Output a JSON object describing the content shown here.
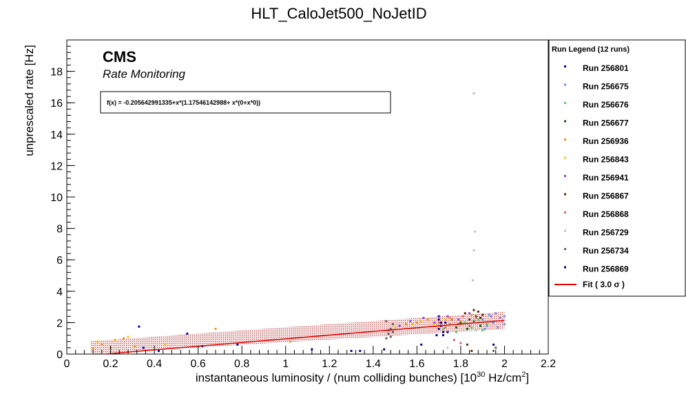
{
  "chart_data": {
    "type": "scatter",
    "title": "HLT_CaloJet500_NoJetID",
    "xlabel": "instantaneous luminosity / (num colliding bunches) [10",
    "xlabel_sup": "30",
    "xlabel_tail": " Hz/cm",
    "xlabel_sup2": "2",
    "xlabel_end": "]",
    "ylabel": "unprescaled rate [Hz]",
    "xlim": [
      0,
      2.2
    ],
    "ylim": [
      0,
      20
    ],
    "xticks": [
      "0",
      "0.2",
      "0.4",
      "0.6",
      "0.8",
      "1",
      "1.2",
      "1.4",
      "1.6",
      "1.8",
      "2",
      "2.2"
    ],
    "yticks": [
      "0",
      "2",
      "4",
      "6",
      "8",
      "10",
      "12",
      "14",
      "16",
      "18"
    ],
    "cms_label": "CMS",
    "subtitle": "Rate Monitoring",
    "fit_formula": "f(x) = -0.205642991335+x*(1.17546142988+ x*(0+x*0))",
    "fit": {
      "intercept": -0.205642991335,
      "slope": 1.17546142988,
      "x_range": [
        0.11,
        2.0
      ],
      "band_sigma": 3.0
    },
    "legend_title": "Run Legend (12 runs)",
    "legend_position": "right",
    "fit_legend_label": "Fit ( 3.0  σ )",
    "fit_color": "#e00000",
    "series": [
      {
        "name": "Run 256801",
        "color": "#0000a0",
        "points": [
          [
            0.33,
            1.75
          ],
          [
            0.35,
            0.4
          ],
          [
            0.42,
            0.2
          ],
          [
            0.55,
            1.3
          ],
          [
            0.62,
            0.5
          ],
          [
            0.78,
            0.6
          ],
          [
            1.12,
            0.3
          ],
          [
            1.34,
            0.2
          ],
          [
            1.62,
            0.6
          ],
          [
            1.7,
            2.4
          ],
          [
            1.71,
            1.8
          ],
          [
            1.72,
            1.2
          ],
          [
            1.73,
            2.0
          ],
          [
            1.74,
            1.4
          ]
        ]
      },
      {
        "name": "Run 256675",
        "color": "#6a8ef0",
        "points": [
          [
            1.9,
            2.2
          ],
          [
            1.92,
            1.8
          ],
          [
            1.94,
            2.4
          ],
          [
            1.95,
            2.0
          ],
          [
            1.96,
            2.6
          ],
          [
            1.97,
            1.7
          ],
          [
            1.98,
            2.3
          ],
          [
            1.99,
            2.1
          ],
          [
            2.0,
            1.9
          ],
          [
            1.93,
            2.5
          ],
          [
            1.91,
            1.6
          ],
          [
            2.0,
            2.4
          ]
        ]
      },
      {
        "name": "Run 256676",
        "color": "#5bc85b",
        "points": [
          [
            1.72,
            1.6
          ],
          [
            1.75,
            1.9
          ],
          [
            1.78,
            1.4
          ],
          [
            1.82,
            2.0
          ],
          [
            1.85,
            1.7
          ],
          [
            1.88,
            2.2
          ],
          [
            1.9,
            1.5
          ],
          [
            1.92,
            1.9
          ]
        ]
      },
      {
        "name": "Run 256677",
        "color": "#006000",
        "points": [
          [
            1.78,
            1.7
          ],
          [
            1.8,
            2.0
          ],
          [
            1.83,
            1.6
          ],
          [
            1.86,
            2.1
          ],
          [
            1.89,
            1.8
          ]
        ]
      },
      {
        "name": "Run 256936",
        "color": "#ff8c1a",
        "points": [
          [
            0.12,
            0.35
          ],
          [
            0.16,
            0.6
          ],
          [
            0.2,
            0.4
          ],
          [
            0.26,
            1.0
          ],
          [
            0.31,
            0.5
          ],
          [
            0.68,
            1.6
          ],
          [
            1.02,
            0.8
          ],
          [
            1.55,
            1.9
          ],
          [
            1.6,
            2.0
          ],
          [
            1.65,
            2.2
          ],
          [
            1.7,
            1.8
          ],
          [
            1.75,
            2.3
          ],
          [
            1.8,
            2.1
          ],
          [
            1.85,
            2.5
          ]
        ]
      },
      {
        "name": "Run 256843",
        "color": "#ffc000",
        "points": [
          [
            0.14,
            0.8
          ],
          [
            0.22,
            0.9
          ],
          [
            0.28,
            1.1
          ],
          [
            0.45,
            0.6
          ],
          [
            1.5,
            1.7
          ],
          [
            1.58,
            1.9
          ],
          [
            1.62,
            2.1
          ],
          [
            1.68,
            1.9
          ],
          [
            1.73,
            2.2
          ]
        ]
      },
      {
        "name": "Run 256941",
        "color": "#9040e0",
        "points": [
          [
            1.52,
            1.8
          ],
          [
            1.57,
            2.1
          ],
          [
            1.63,
            2.3
          ],
          [
            1.68,
            2.0
          ],
          [
            1.74,
            2.4
          ],
          [
            1.79,
            2.2
          ],
          [
            1.84,
            2.6
          ]
        ]
      },
      {
        "name": "Run 256867",
        "color": "#5a2a00",
        "points": [
          [
            1.82,
            2.6
          ],
          [
            1.84,
            2.2
          ],
          [
            1.86,
            2.8
          ],
          [
            1.87,
            2.4
          ],
          [
            1.88,
            2.7
          ],
          [
            1.89,
            2.3
          ],
          [
            1.9,
            2.5
          ],
          [
            1.83,
            0.6
          ],
          [
            1.85,
            0.2
          ]
        ]
      },
      {
        "name": "Run 256868",
        "color": "#e06060",
        "points": [
          [
            1.7,
            2.0
          ],
          [
            1.73,
            1.7
          ],
          [
            1.76,
            2.2
          ],
          [
            1.79,
            1.9
          ],
          [
            1.81,
            2.4
          ],
          [
            1.84,
            1.8
          ],
          [
            1.87,
            2.3
          ],
          [
            1.77,
            0.9
          ],
          [
            1.8,
            0.7
          ]
        ]
      },
      {
        "name": "Run 256729",
        "color": "#c0c0c0",
        "points": [
          [
            1.86,
            16.6
          ],
          [
            1.865,
            7.8
          ],
          [
            1.86,
            6.6
          ],
          [
            1.855,
            4.7
          ],
          [
            1.86,
            2.2
          ],
          [
            1.87,
            1.5
          ],
          [
            1.88,
            2.0
          ],
          [
            1.74,
            0.4
          ]
        ]
      },
      {
        "name": "Run 256734",
        "color": "#606060",
        "points": [
          [
            1.46,
            1.0
          ],
          [
            1.47,
            1.3
          ],
          [
            1.48,
            1.6
          ],
          [
            1.49,
            1.9
          ],
          [
            1.46,
            2.1
          ],
          [
            1.47,
            1.5
          ],
          [
            1.48,
            1.1
          ],
          [
            1.49,
            1.4
          ],
          [
            1.96,
            0.4
          ],
          [
            1.95,
            0.2
          ]
        ]
      },
      {
        "name": "Run 256869",
        "color": "#00007a",
        "points": [
          [
            1.69,
            1.2
          ],
          [
            1.7,
            1.6
          ],
          [
            1.71,
            2.0
          ],
          [
            1.7,
            2.2
          ],
          [
            1.72,
            1.4
          ],
          [
            1.3,
            0.2
          ],
          [
            1.45,
            0.3
          ],
          [
            1.95,
            0.6
          ]
        ]
      }
    ]
  }
}
